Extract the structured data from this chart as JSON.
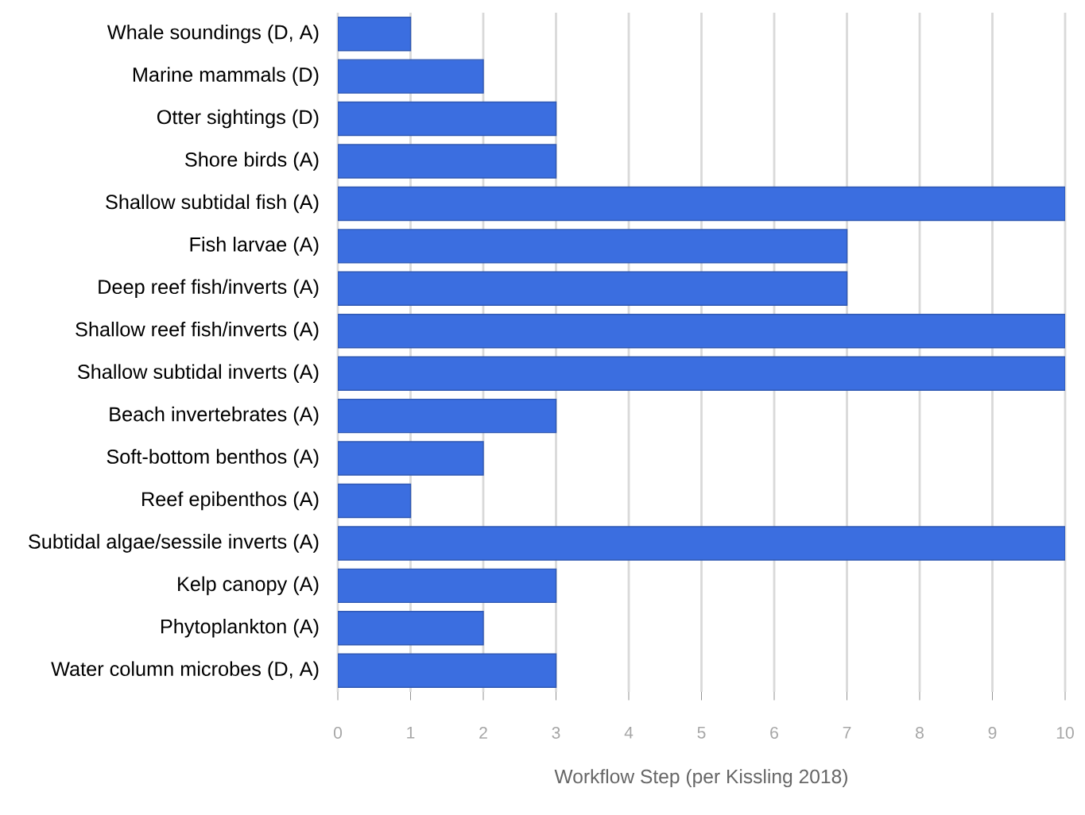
{
  "chart_data": {
    "type": "bar",
    "orientation": "horizontal",
    "xlabel": "Workflow Step (per Kissling 2018)",
    "categories": [
      "Whale soundings (D, A)",
      "Marine mammals (D)",
      "Otter sightings (D)",
      "Shore birds (A)",
      "Shallow subtidal fish (A)",
      "Fish larvae (A)",
      "Deep reef fish/inverts (A)",
      "Shallow reef fish/inverts (A)",
      "Shallow subtidal inverts (A)",
      "Beach invertebrates (A)",
      "Soft-bottom benthos (A)",
      "Reef epibenthos (A)",
      "Subtidal algae/sessile inverts (A)",
      "Kelp canopy (A)",
      "Phytoplankton (A)",
      "Water column microbes (D, A)"
    ],
    "values": [
      1,
      2,
      3,
      3,
      10,
      7,
      7,
      10,
      10,
      3,
      2,
      1,
      10,
      3,
      2,
      3
    ],
    "color": "#3b6ee0",
    "xlim": [
      0,
      10
    ],
    "xticks": [
      0,
      1,
      2,
      3,
      4,
      5,
      6,
      7,
      8,
      9,
      10
    ],
    "grid": "x"
  }
}
